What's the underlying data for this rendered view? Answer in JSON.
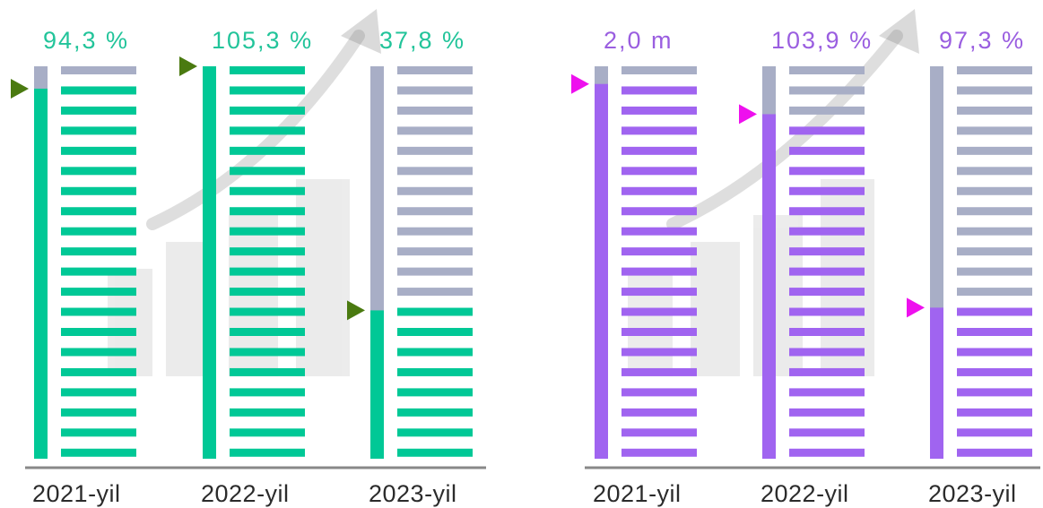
{
  "colors": {
    "green": "#00c896",
    "purple": "#a064f0",
    "grey": "#a8aec6",
    "green_marker": "#4a7a10",
    "magenta_marker": "#ee10ee",
    "baseline": "#888888",
    "background_art": "decorative growth chart with rising arrow (faded)"
  },
  "chart_data": [
    {
      "type": "bar",
      "style": "stacked-progress-stripes",
      "categories": [
        "2021-yil",
        "2022-yil",
        "2023-yil"
      ],
      "values": [
        94.3,
        105.3,
        37.8
      ],
      "value_labels": [
        "94,3 %",
        "105,3 %",
        "37,8 %"
      ],
      "unit": "%",
      "ylim": [
        0,
        100
      ],
      "fill_color": "#00c896",
      "remainder_color": "#a8aec6",
      "grid": false,
      "legend": false
    },
    {
      "type": "bar",
      "style": "stacked-progress-stripes",
      "categories": [
        "2021-yil",
        "2022-yil",
        "2023-yil"
      ],
      "values": [
        95.5,
        87.8,
        38.5
      ],
      "value_labels": [
        "2,0 m",
        "103,9 %",
        "97,3 %"
      ],
      "unit": "%",
      "ylim": [
        0,
        100
      ],
      "fill_color": "#a064f0",
      "remainder_color": "#a8aec6",
      "grid": false,
      "legend": false
    }
  ]
}
